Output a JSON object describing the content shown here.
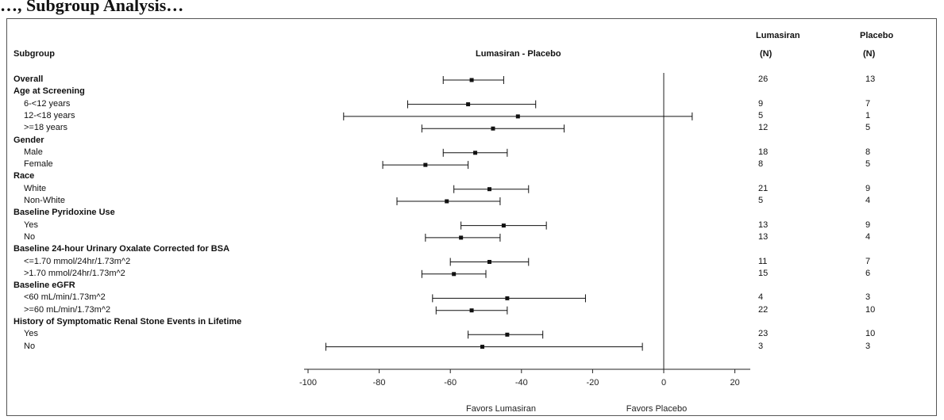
{
  "page_title": "…, Subgroup Analysis…",
  "headers": {
    "subgroup": "Subgroup",
    "center": "Lumasiran - Placebo",
    "lumasiran_line1": "Lumasiran",
    "lumasiran_line2": "(N)",
    "placebo_line1": "Placebo",
    "placebo_line2": "(N)"
  },
  "footer": {
    "left": "Favors Lumasiran",
    "right": "Favors Placebo"
  },
  "chart_data": {
    "type": "forest",
    "x_ticks": [
      -100,
      -80,
      -60,
      -40,
      -20,
      0,
      20
    ],
    "xlim": [
      -105,
      25
    ],
    "reference_line": 0,
    "rows": [
      {
        "label": "Overall",
        "kind": "head",
        "est": -54,
        "lo": -62,
        "hi": -45,
        "n_lum": "26",
        "n_pbo": "13"
      },
      {
        "label": "Age at Screening",
        "kind": "head"
      },
      {
        "label": "6-<12 years",
        "kind": "sub",
        "est": -55,
        "lo": -72,
        "hi": -36,
        "n_lum": "9",
        "n_pbo": "7"
      },
      {
        "label": "12-<18 years",
        "kind": "sub",
        "est": -41,
        "lo": -90,
        "hi": 8,
        "n_lum": "5",
        "n_pbo": "1"
      },
      {
        "label": ">=18 years",
        "kind": "sub",
        "est": -48,
        "lo": -68,
        "hi": -28,
        "n_lum": "12",
        "n_pbo": "5"
      },
      {
        "label": "Gender",
        "kind": "head"
      },
      {
        "label": "Male",
        "kind": "sub",
        "est": -53,
        "lo": -62,
        "hi": -44,
        "n_lum": "18",
        "n_pbo": "8"
      },
      {
        "label": "Female",
        "kind": "sub",
        "est": -67,
        "lo": -79,
        "hi": -55,
        "n_lum": "8",
        "n_pbo": "5"
      },
      {
        "label": "Race",
        "kind": "head"
      },
      {
        "label": "White",
        "kind": "sub",
        "est": -49,
        "lo": -59,
        "hi": -38,
        "n_lum": "21",
        "n_pbo": "9"
      },
      {
        "label": "Non-White",
        "kind": "sub",
        "est": -61,
        "lo": -75,
        "hi": -46,
        "n_lum": "5",
        "n_pbo": "4"
      },
      {
        "label": "Baseline Pyridoxine Use",
        "kind": "head"
      },
      {
        "label": "Yes",
        "kind": "sub",
        "est": -45,
        "lo": -57,
        "hi": -33,
        "n_lum": "13",
        "n_pbo": "9"
      },
      {
        "label": "No",
        "kind": "sub",
        "est": -57,
        "lo": -67,
        "hi": -46,
        "n_lum": "13",
        "n_pbo": "4"
      },
      {
        "label": "Baseline 24-hour Urinary Oxalate Corrected for BSA",
        "kind": "head"
      },
      {
        "label": "<=1.70 mmol/24hr/1.73m^2",
        "kind": "sub",
        "est": -49,
        "lo": -60,
        "hi": -38,
        "n_lum": "11",
        "n_pbo": "7"
      },
      {
        "label": ">1.70 mmol/24hr/1.73m^2",
        "kind": "sub",
        "est": -59,
        "lo": -68,
        "hi": -50,
        "n_lum": "15",
        "n_pbo": "6"
      },
      {
        "label": "Baseline eGFR",
        "kind": "head"
      },
      {
        "label": "<60 mL/min/1.73m^2",
        "kind": "sub",
        "est": -44,
        "lo": -65,
        "hi": -22,
        "n_lum": "4",
        "n_pbo": "3"
      },
      {
        "label": ">=60 mL/min/1.73m^2",
        "kind": "sub",
        "est": -54,
        "lo": -64,
        "hi": -44,
        "n_lum": "22",
        "n_pbo": "10"
      },
      {
        "label": "History of Symptomatic Renal Stone Events in Lifetime",
        "kind": "head"
      },
      {
        "label": "Yes",
        "kind": "sub",
        "est": -44,
        "lo": -55,
        "hi": -34,
        "n_lum": "23",
        "n_pbo": "10"
      },
      {
        "label": "No",
        "kind": "sub",
        "est": -51,
        "lo": -95,
        "hi": -6,
        "n_lum": "3",
        "n_pbo": "3"
      }
    ]
  }
}
